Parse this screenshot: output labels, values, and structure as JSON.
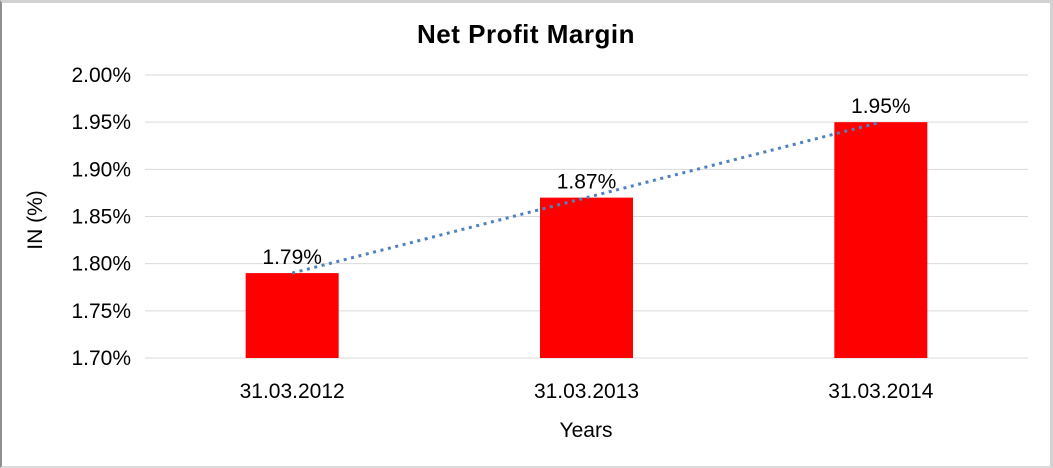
{
  "chart_data": {
    "type": "bar",
    "title": "Net Profit Margin",
    "xlabel": "Years",
    "ylabel": "IN (%)",
    "categories": [
      "31.03.2012",
      "31.03.2013",
      "31.03.2014"
    ],
    "values": [
      1.79,
      1.87,
      1.95
    ],
    "data_labels": [
      "1.79%",
      "1.87%",
      "1.95%"
    ],
    "ylim": [
      1.7,
      2.0
    ],
    "y_ticks": [
      {
        "value": 1.7,
        "label": "1.70%"
      },
      {
        "value": 1.75,
        "label": "1.75%"
      },
      {
        "value": 1.8,
        "label": "1.80%"
      },
      {
        "value": 1.85,
        "label": "1.85%"
      },
      {
        "value": 1.9,
        "label": "1.90%"
      },
      {
        "value": 1.95,
        "label": "1.95%"
      },
      {
        "value": 2.0,
        "label": "2.00%"
      }
    ],
    "grid": "horizontal",
    "legend": "none",
    "colors": {
      "bar": "#FF0000",
      "gridline": "#D9D9D9",
      "text": "#000000"
    },
    "trendline": {
      "style": "dotted",
      "color": "#4F81BD",
      "from_value": 1.79,
      "to_value": 1.95
    }
  }
}
